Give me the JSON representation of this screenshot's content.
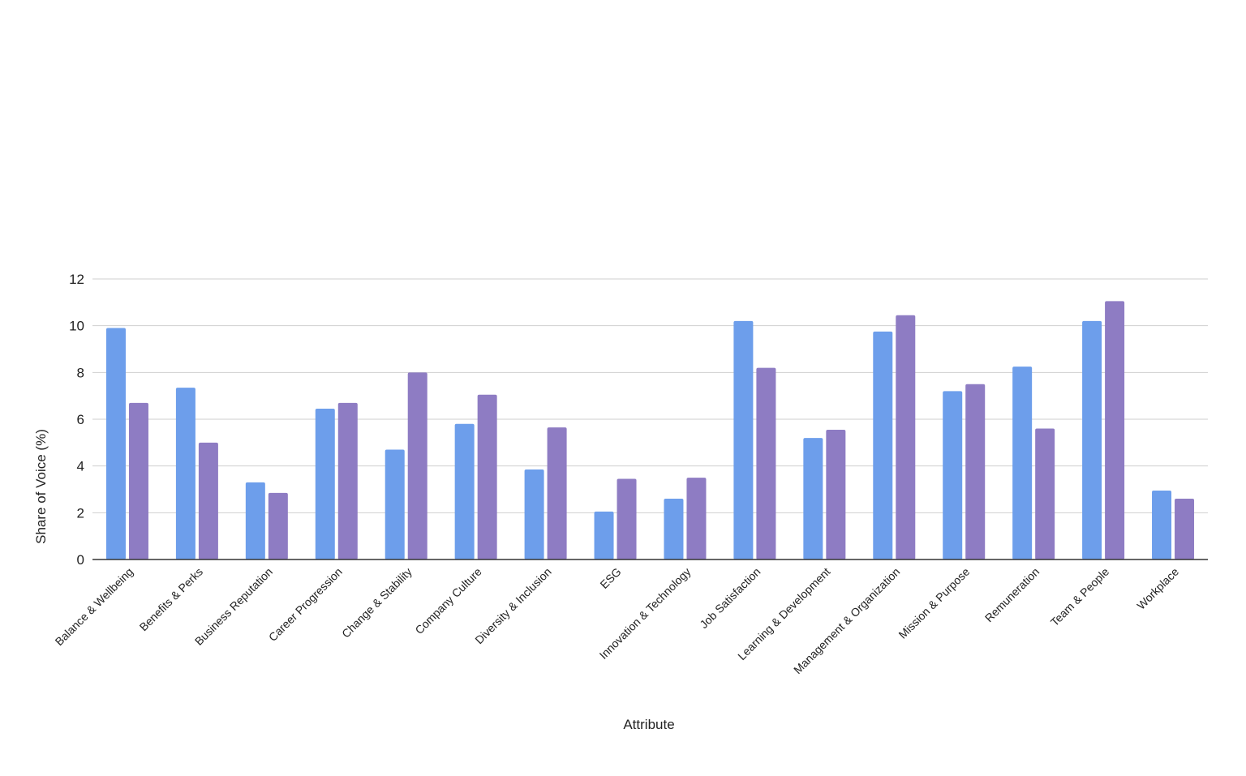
{
  "chart_data": {
    "type": "bar",
    "title": "",
    "xlabel": "Attribute",
    "ylabel": "Share of Voice (%)",
    "ylim": [
      0,
      12
    ],
    "yticks": [
      0,
      2,
      4,
      6,
      8,
      10,
      12
    ],
    "grid": true,
    "legend": "none",
    "categories": [
      "Balance & Wellbeing",
      "Benefits & Perks",
      "Business Reputation",
      "Career Progression",
      "Change & Stability",
      "Company Culture",
      "Diversity & Inclusion",
      "ESG",
      "Innovation & Technology",
      "Job Satisfaction",
      "Learning & Development",
      "Management & Organization",
      "Mission & Purpose",
      "Remuneration",
      "Team & People",
      "Workplace"
    ],
    "series": [
      {
        "color": "#6d9eeb",
        "values": [
          9.9,
          7.35,
          3.3,
          6.45,
          4.7,
          5.8,
          3.85,
          2.05,
          2.6,
          10.2,
          5.2,
          9.75,
          7.2,
          8.25,
          10.2,
          2.95
        ]
      },
      {
        "color": "#8e7cc3",
        "values": [
          6.7,
          5.0,
          2.85,
          6.7,
          8.0,
          7.05,
          5.65,
          3.45,
          3.5,
          8.2,
          5.55,
          10.45,
          7.5,
          5.6,
          11.05,
          2.6
        ]
      }
    ]
  }
}
